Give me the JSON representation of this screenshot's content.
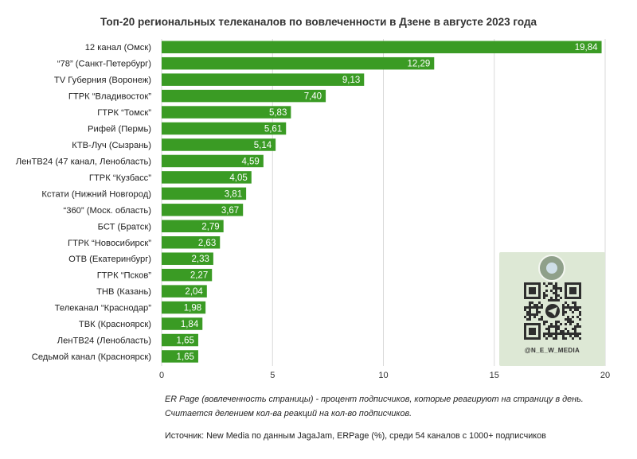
{
  "colors": {
    "bar": "#3a9b24",
    "grid": "#d9d9d9",
    "qr_background": "#dde8d5",
    "qr_modules": "#2e2e2e"
  },
  "chart_data": {
    "type": "bar",
    "orientation": "horizontal",
    "title": "Топ-20 региональных телеканалов по вовлеченности в Дзене в августе 2023 года",
    "categories": [
      "12 канал (Омск)",
      "“78” (Санкт-Петербург)",
      "TV Губерния (Воронеж)",
      "ГТРК “Владивосток”",
      "ГТРК “Томск”",
      "Рифей (Пермь)",
      "КТВ-Луч (Сызрань)",
      "ЛенТВ24 (47 канал, Ленобласть)",
      "ГТРК “Кузбасс”",
      "Кстати (Нижний Новгород)",
      "“360” (Моск. область)",
      "БСТ (Братск)",
      "ГТРК “Новосибирск”",
      "ОТВ (Екатеринбург)",
      "ГТРК “Псков”",
      "ТНВ (Казань)",
      "Телеканал “Краснодар”",
      "ТВК (Красноярск)",
      "ЛенТВ24 (Ленобласть)",
      "Седьмой канал (Красноярск)"
    ],
    "values": [
      19.84,
      12.29,
      9.13,
      7.4,
      5.83,
      5.61,
      5.14,
      4.59,
      4.05,
      3.81,
      3.67,
      2.79,
      2.63,
      2.33,
      2.27,
      2.04,
      1.98,
      1.84,
      1.65,
      1.65
    ],
    "value_labels": [
      "19,84",
      "12,29",
      "9,13",
      "7,40",
      "5,83",
      "5,61",
      "5,14",
      "4,59",
      "4,05",
      "3,81",
      "3,67",
      "2,79",
      "2,63",
      "2,33",
      "2,27",
      "2,04",
      "1,98",
      "1,84",
      "1,65",
      "1,65"
    ],
    "xlim": [
      0,
      20
    ],
    "x_ticks": [
      0,
      5,
      10,
      15,
      20
    ],
    "grid": true,
    "legend": "none"
  },
  "note": "ER Page (вовлеченность страницы) - процент подписчиков, которые реагируют на страницу в день. Считается делением кол-ва реакций на кол-во подписчиков.",
  "source": "Источник: New Media по данным JagaJam, ERPage (%), среди 54 каналов с 1000+ подписчиков",
  "qr_card": {
    "handle": "@N_E_W_MEDIA",
    "logo_icon": "channel-logo-icon",
    "telegram_icon": "telegram-icon"
  }
}
